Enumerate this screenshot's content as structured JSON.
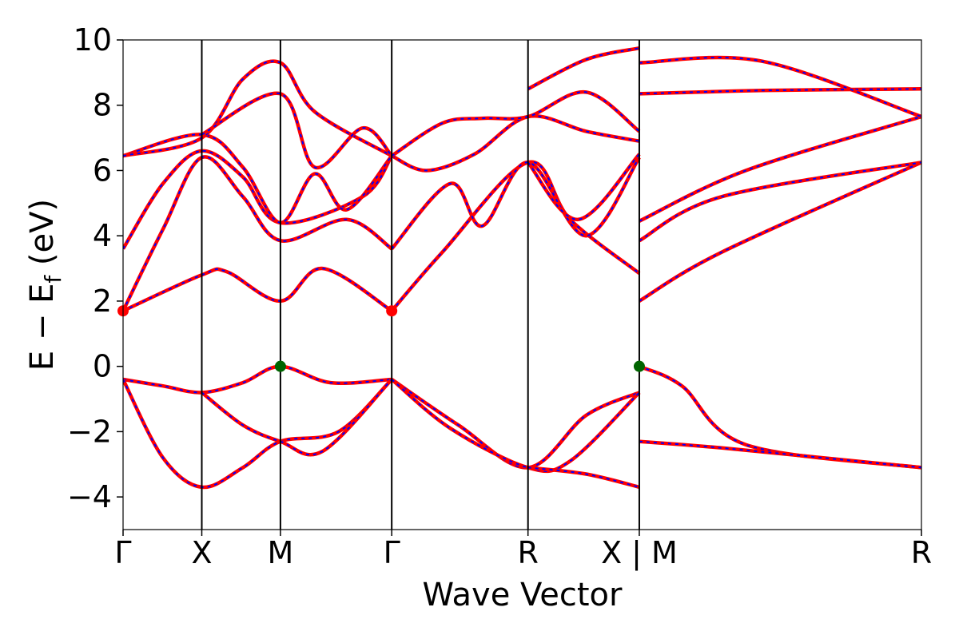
{
  "chart_data": {
    "type": "line",
    "title": "",
    "xlabel": "Wave Vector",
    "ylabel_main": "E − E",
    "ylabel_sub": "f",
    "ylabel_unit": " (eV)",
    "ylim": [
      -5,
      10
    ],
    "yticks": [
      {
        "value": -4,
        "label": "−4"
      },
      {
        "value": -2,
        "label": "−2"
      },
      {
        "value": 0,
        "label": "0"
      },
      {
        "value": 2,
        "label": "2"
      },
      {
        "value": 4,
        "label": "4"
      },
      {
        "value": 6,
        "label": "6"
      },
      {
        "value": 8,
        "label": "8"
      },
      {
        "value": 10,
        "label": "10"
      }
    ],
    "kpath_length": 1.0,
    "kpoints": [
      {
        "position": 0.0,
        "label": "Γ"
      },
      {
        "position": 0.0986,
        "label": "X"
      },
      {
        "position": 0.1971,
        "label": "M"
      },
      {
        "position": 0.3365,
        "label": "Γ"
      },
      {
        "position": 0.5072,
        "label": "R"
      },
      {
        "position": 0.6466,
        "label": "X | M"
      },
      {
        "position": 1.0,
        "label": "R"
      }
    ],
    "series_colors": {
      "band": "#ff0000",
      "band_overlay": "#0000ff"
    },
    "grid": false,
    "legend": "none",
    "bands": [
      [
        [
          0.0,
          -0.4
        ],
        [
          0.05,
          -0.6
        ],
        [
          0.0986,
          -0.8
        ],
        [
          0.15,
          -0.5
        ],
        [
          0.1971,
          0.0
        ],
        [
          0.26,
          -0.5
        ],
        [
          0.3365,
          -0.4
        ]
      ],
      [
        [
          0.3365,
          -0.4
        ],
        [
          0.42,
          -1.8
        ],
        [
          0.5072,
          -3.1
        ],
        [
          0.58,
          -1.5
        ],
        [
          0.6466,
          -0.8
        ]
      ],
      [
        [
          0.0,
          -0.4
        ],
        [
          0.05,
          -2.8
        ],
        [
          0.0986,
          -3.7
        ],
        [
          0.15,
          -3.1
        ],
        [
          0.1971,
          -2.3
        ],
        [
          0.27,
          -2.0
        ],
        [
          0.3365,
          -0.4
        ]
      ],
      [
        [
          0.0986,
          -0.8
        ],
        [
          0.15,
          -1.8
        ],
        [
          0.1971,
          -2.3
        ],
        [
          0.25,
          -2.6
        ],
        [
          0.3365,
          -0.4
        ]
      ],
      [
        [
          0.3365,
          -0.4
        ],
        [
          0.41,
          -1.9
        ],
        [
          0.5072,
          -3.1
        ],
        [
          0.56,
          -2.9
        ],
        [
          0.6466,
          -0.8
        ]
      ],
      [
        [
          0.5072,
          -3.1
        ],
        [
          0.58,
          -3.3
        ],
        [
          0.6466,
          -3.7
        ]
      ],
      [
        [
          0.6466,
          0.0
        ],
        [
          0.7,
          -0.6
        ],
        [
          0.78,
          -2.4
        ],
        [
          1.0,
          -3.1
        ]
      ],
      [
        [
          0.6466,
          -2.3
        ],
        [
          0.75,
          -2.5
        ],
        [
          1.0,
          -3.1
        ]
      ],
      [
        [
          0.0,
          1.7
        ],
        [
          0.0986,
          2.8
        ],
        [
          0.13,
          2.9
        ],
        [
          0.1971,
          2.0
        ],
        [
          0.25,
          3.0
        ],
        [
          0.3365,
          1.7
        ]
      ],
      [
        [
          0.0,
          1.7
        ],
        [
          0.05,
          4.2
        ],
        [
          0.0986,
          6.4
        ],
        [
          0.15,
          5.2
        ],
        [
          0.1971,
          3.85
        ],
        [
          0.28,
          4.5
        ],
        [
          0.3365,
          3.6
        ]
      ],
      [
        [
          0.0,
          3.6
        ],
        [
          0.05,
          5.6
        ],
        [
          0.0986,
          6.6
        ],
        [
          0.15,
          5.8
        ],
        [
          0.1971,
          4.4
        ],
        [
          0.3,
          5.2
        ],
        [
          0.3365,
          6.45
        ]
      ],
      [
        [
          0.3365,
          1.7
        ],
        [
          0.4,
          3.5
        ],
        [
          0.5072,
          6.25
        ],
        [
          0.56,
          4.5
        ],
        [
          0.6466,
          2.85
        ]
      ],
      [
        [
          0.3365,
          3.6
        ],
        [
          0.41,
          5.6
        ],
        [
          0.45,
          4.3
        ],
        [
          0.5072,
          6.25
        ],
        [
          0.58,
          4.0
        ],
        [
          0.6466,
          6.4
        ]
      ],
      [
        [
          0.5072,
          6.25
        ],
        [
          0.57,
          4.5
        ],
        [
          0.6466,
          6.5
        ]
      ],
      [
        [
          0.6466,
          2.0
        ],
        [
          0.75,
          3.5
        ],
        [
          1.0,
          6.25
        ]
      ],
      [
        [
          0.6466,
          3.85
        ],
        [
          0.75,
          5.2
        ],
        [
          1.0,
          6.25
        ]
      ],
      [
        [
          0.6466,
          4.45
        ],
        [
          0.78,
          6.0
        ],
        [
          1.0,
          7.65
        ]
      ],
      [
        [
          0.0,
          6.45
        ],
        [
          0.0986,
          7.1
        ],
        [
          0.15,
          6.1
        ],
        [
          0.1971,
          4.4
        ],
        [
          0.24,
          5.9
        ],
        [
          0.28,
          4.8
        ],
        [
          0.3365,
          6.45
        ]
      ],
      [
        [
          0.0,
          6.45
        ],
        [
          0.0986,
          7.0
        ],
        [
          0.15,
          8.8
        ],
        [
          0.1971,
          9.3
        ],
        [
          0.24,
          7.8
        ],
        [
          0.3365,
          6.45
        ]
      ],
      [
        [
          0.0986,
          7.1
        ],
        [
          0.1971,
          8.35
        ],
        [
          0.24,
          6.1
        ],
        [
          0.3,
          7.3
        ],
        [
          0.3365,
          6.45
        ]
      ],
      [
        [
          0.3365,
          6.45
        ],
        [
          0.38,
          6.0
        ],
        [
          0.44,
          6.5
        ],
        [
          0.5072,
          7.65
        ],
        [
          0.58,
          7.2
        ],
        [
          0.6466,
          6.9
        ]
      ],
      [
        [
          0.3365,
          6.45
        ],
        [
          0.4,
          7.45
        ],
        [
          0.45,
          7.6
        ],
        [
          0.5072,
          7.65
        ],
        [
          0.58,
          8.4
        ],
        [
          0.6466,
          7.2
        ]
      ],
      [
        [
          0.5072,
          8.5
        ],
        [
          0.58,
          9.4
        ],
        [
          0.6466,
          9.75
        ]
      ],
      [
        [
          0.6466,
          8.35
        ],
        [
          0.8,
          8.45
        ],
        [
          1.0,
          8.5
        ]
      ],
      [
        [
          0.6466,
          9.3
        ],
        [
          0.8,
          9.35
        ],
        [
          1.0,
          7.65
        ]
      ]
    ]
  }
}
